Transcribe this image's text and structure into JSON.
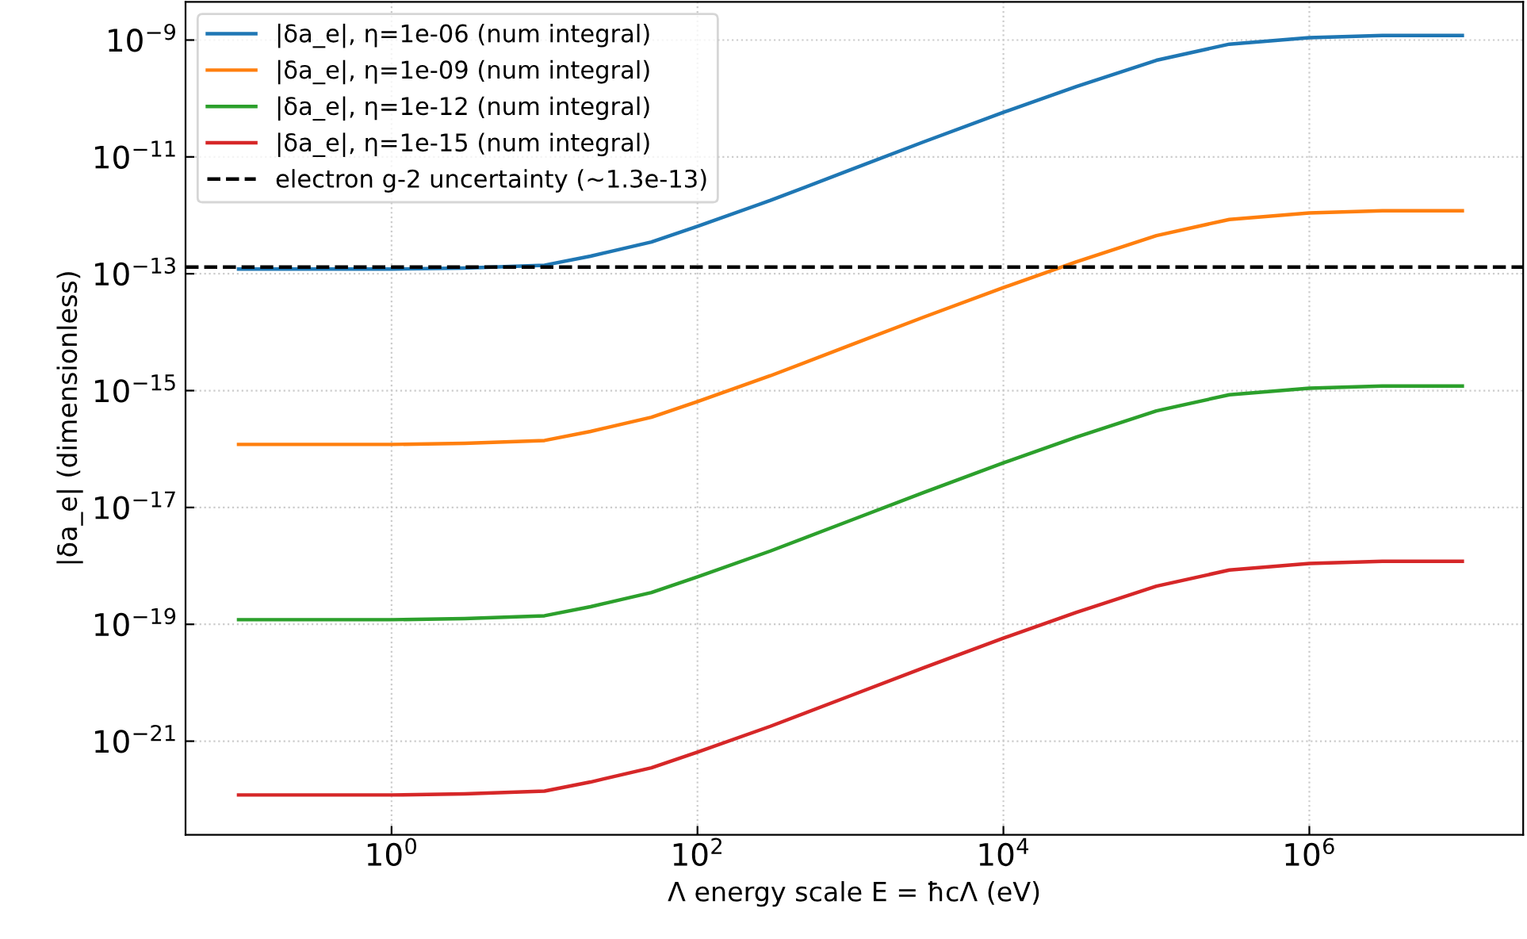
{
  "chart_data": {
    "type": "line",
    "xlabel": "Λ energy scale E = ħcΛ (eV)",
    "ylabel": "|δa_e| (dimensionless)",
    "x": [
      0.1,
      1,
      3,
      10,
      20,
      50,
      100,
      300,
      1000,
      3000,
      10000,
      30000,
      100000,
      300000,
      1000000,
      3000000,
      10000000
    ],
    "series": [
      {
        "name": "|δa_e|, η=1e-06 (num integral)",
        "color": "#1f77b4",
        "values": [
          1.2e-13,
          1.2e-13,
          1.25e-13,
          1.4e-13,
          2e-13,
          3.5e-13,
          6.5e-13,
          1.8e-12,
          6e-12,
          1.8e-11,
          5.8e-11,
          1.6e-10,
          4.5e-10,
          8.5e-10,
          1.1e-09,
          1.2e-09,
          1.2e-09
        ]
      },
      {
        "name": "|δa_e|, η=1e-09 (num integral)",
        "color": "#ff7f0e",
        "values": [
          1.2e-16,
          1.2e-16,
          1.25e-16,
          1.4e-16,
          2e-16,
          3.5e-16,
          6.5e-16,
          1.8e-15,
          6e-15,
          1.8e-14,
          5.8e-14,
          1.6e-13,
          4.5e-13,
          8.5e-13,
          1.1e-12,
          1.2e-12,
          1.2e-12
        ]
      },
      {
        "name": "|δa_e|, η=1e-12 (num integral)",
        "color": "#2ca02c",
        "values": [
          1.2e-19,
          1.2e-19,
          1.25e-19,
          1.4e-19,
          2e-19,
          3.5e-19,
          6.5e-19,
          1.8e-18,
          6e-18,
          1.8e-17,
          5.8e-17,
          1.6e-16,
          4.5e-16,
          8.5e-16,
          1.1e-15,
          1.2e-15,
          1.2e-15
        ]
      },
      {
        "name": "|δa_e|, η=1e-15 (num integral)",
        "color": "#d62728",
        "values": [
          1.2e-22,
          1.2e-22,
          1.25e-22,
          1.4e-22,
          2e-22,
          3.5e-22,
          6.5e-22,
          1.8e-21,
          6e-21,
          1.8e-20,
          5.8e-20,
          1.6e-19,
          4.5e-19,
          8.5e-19,
          1.1e-18,
          1.2e-18,
          1.2e-18
        ]
      }
    ],
    "ref_lines": [
      {
        "axis": "y",
        "value": 1.3e-13,
        "label": "electron g-2 uncertainty (~1.3e-13)",
        "color": "#000000",
        "line_style": "dashed"
      }
    ],
    "log": "xy",
    "xlim": [
      0.045,
      25000000.0
    ],
    "ylim": [
      2.5e-23,
      4.5e-09
    ],
    "xticks": [
      {
        "value": 1,
        "label": "10$^{0}$"
      },
      {
        "value": 100,
        "label": "10$^{2}$"
      },
      {
        "value": 10000,
        "label": "10$^{4}$"
      },
      {
        "value": 1000000,
        "label": "10$^{6}$"
      }
    ],
    "yticks": [
      {
        "value": 1e-21,
        "label": "10$^{−21}$"
      },
      {
        "value": 1e-19,
        "label": "10$^{−19}$"
      },
      {
        "value": 1e-17,
        "label": "10$^{−17}$"
      },
      {
        "value": 1e-15,
        "label": "10$^{−15}$"
      },
      {
        "value": 1e-13,
        "label": "10$^{−13}$"
      },
      {
        "value": 1e-11,
        "label": "10$^{−11}$"
      },
      {
        "value": 1e-09,
        "label": "10$^{−9}$"
      }
    ],
    "grid": true,
    "legend": "top left",
    "marker": "none",
    "line_style": "solid"
  }
}
